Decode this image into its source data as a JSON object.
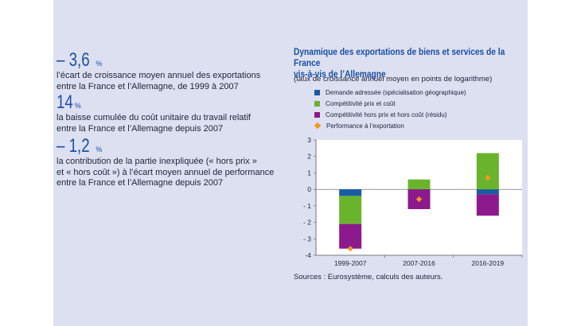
{
  "key_figures": [
    {
      "value": "– 3,6",
      "unit": "%",
      "text": [
        "l’écart de croissance moyen annuel des exportations",
        "entre la France et l’Allemagne, de 1999 à 2007"
      ]
    },
    {
      "value": "14",
      "unit": "%",
      "text": [
        "la baisse cumulée du coût unitaire du travail relatif",
        "entre la France et l’Allemagne depuis 2007"
      ]
    },
    {
      "value": "– 1,2",
      "unit": "%",
      "text": [
        "la contribution de la partie inexpliquée (« hors prix »",
        "et « hors coût ») à l’écart moyen annuel de performance",
        "entre la France et l’Allemagne depuis 2007"
      ]
    }
  ],
  "colors": {
    "panel_bg": "#dde0f1",
    "demande": "#1a5ba6",
    "prix": "#6ab42d",
    "hors_prix": "#8c1a8c",
    "performance": "#f39a1f"
  },
  "chart_data": {
    "type": "bar",
    "stacked": true,
    "title": [
      "Dynamique des exportations de biens et services de la France",
      "vis-à-vis de l’Allemagne"
    ],
    "subtitle": "(taux de croissance annuel moyen en points de logarithme)",
    "categories": [
      "1999-2007",
      "2007-2016",
      "2016-2019"
    ],
    "ylim": [
      -4,
      3
    ],
    "yticks": [
      "3",
      "2",
      "1",
      "0",
      "- 1",
      "- 2",
      "- 3",
      "-4"
    ],
    "ytick_values": [
      3,
      2,
      1,
      0,
      -1,
      -2,
      -3,
      -4
    ],
    "series": [
      {
        "name": "Demande adressée (spécialisation géographique)",
        "values": [
          -0.4,
          0.0,
          -0.3
        ],
        "color_key": "demande"
      },
      {
        "name": "Compétitivité prix et coût",
        "values": [
          -1.7,
          0.6,
          2.2
        ],
        "color_key": "prix"
      },
      {
        "name": "Compétitivité hors prix et hors coût (résidu)",
        "values": [
          -1.5,
          -1.2,
          -1.3
        ],
        "color_key": "hors_prix"
      }
    ],
    "markers": {
      "name": "Performance à l’exportation",
      "values": [
        -3.6,
        -0.6,
        0.7
      ],
      "color_key": "performance"
    },
    "legend_position": "top",
    "grid": false
  },
  "source": "Sources : Eurosystème, calculs des auteurs."
}
